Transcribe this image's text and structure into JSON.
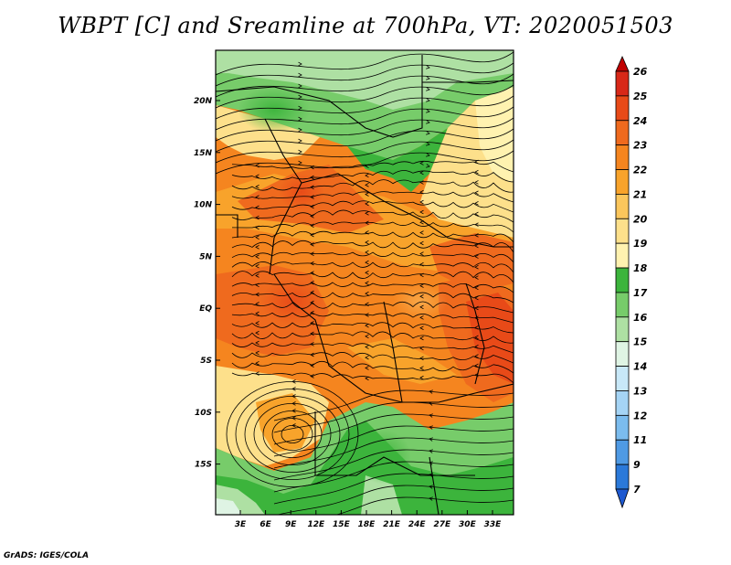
{
  "title": "WBPT [C] and Sreamline at 700hPa, VT: 2020051503",
  "footer": "GrADS: IGES/COLA",
  "map": {
    "variable": "Wet-bulb potential temperature",
    "units": "C",
    "level": "700hPa",
    "valid_time": "2020051503",
    "lon_labels": [
      "3E",
      "6E",
      "9E",
      "12E",
      "15E",
      "18E",
      "21E",
      "24E",
      "27E",
      "30E",
      "33E"
    ],
    "lat_labels": [
      "20N",
      "15N",
      "10N",
      "5N",
      "EQ",
      "5S",
      "10S",
      "15S"
    ]
  },
  "colorbar": {
    "levels": [
      "26",
      "25",
      "24",
      "23",
      "22",
      "21",
      "20",
      "19",
      "18",
      "17",
      "16",
      "15",
      "14",
      "13",
      "12",
      "11",
      "9",
      "7"
    ],
    "colors": [
      "#c00000",
      "#d82818",
      "#e84a18",
      "#ef6a1e",
      "#f5851f",
      "#f8a32b",
      "#fbc65c",
      "#fde08b",
      "#fff2b0",
      "#3cb43c",
      "#77cc6a",
      "#aee0a3",
      "#dff4e4",
      "#c8e8f8",
      "#a5d4f5",
      "#7bbcee",
      "#4f9ae4",
      "#2b79d9",
      "#1e59d0"
    ]
  }
}
